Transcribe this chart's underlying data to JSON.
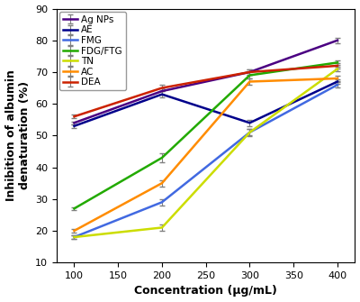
{
  "x": [
    100,
    200,
    300,
    400
  ],
  "series": [
    {
      "label": "Ag NPs",
      "y": [
        54,
        64,
        70,
        80
      ],
      "yerr": [
        0.5,
        1.0,
        0.8,
        0.8
      ],
      "color": "#4B0082",
      "linewidth": 1.8
    },
    {
      "label": "AE",
      "y": [
        53,
        63,
        54,
        67
      ],
      "yerr": [
        0.5,
        1.0,
        1.0,
        0.8
      ],
      "color": "#00008B",
      "linewidth": 1.8
    },
    {
      "label": "FMG",
      "y": [
        18,
        29,
        51,
        66
      ],
      "yerr": [
        0.5,
        1.0,
        1.0,
        0.8
      ],
      "color": "#4169E1",
      "linewidth": 1.8
    },
    {
      "label": "FDG/FTG",
      "y": [
        27,
        43,
        69,
        73
      ],
      "yerr": [
        0.5,
        1.5,
        1.0,
        0.8
      ],
      "color": "#22AA00",
      "linewidth": 1.8
    },
    {
      "label": "TN",
      "y": [
        18,
        21,
        51,
        71
      ],
      "yerr": [
        0.5,
        1.0,
        1.2,
        0.8
      ],
      "color": "#CCDD00",
      "linewidth": 1.8
    },
    {
      "label": "AC",
      "y": [
        20,
        35,
        67,
        68
      ],
      "yerr": [
        0.5,
        1.0,
        1.0,
        0.8
      ],
      "color": "#FF8C00",
      "linewidth": 1.8
    },
    {
      "label": "DEA",
      "y": [
        56,
        65,
        70,
        72
      ],
      "yerr": [
        0.5,
        1.0,
        0.8,
        0.8
      ],
      "color": "#CC2200",
      "linewidth": 1.8
    }
  ],
  "xlabel": "Concentration (μg/mL)",
  "ylabel": "Inhibition of albumin\ndenaturation (%)",
  "xlim": [
    80,
    420
  ],
  "ylim": [
    10,
    90
  ],
  "xticks": [
    100,
    150,
    200,
    250,
    300,
    350,
    400
  ],
  "yticks": [
    10,
    20,
    30,
    40,
    50,
    60,
    70,
    80,
    90
  ],
  "label_fontsize": 9,
  "tick_fontsize": 8,
  "legend_fontsize": 7.5,
  "figsize": [
    4.0,
    3.35
  ],
  "dpi": 100
}
